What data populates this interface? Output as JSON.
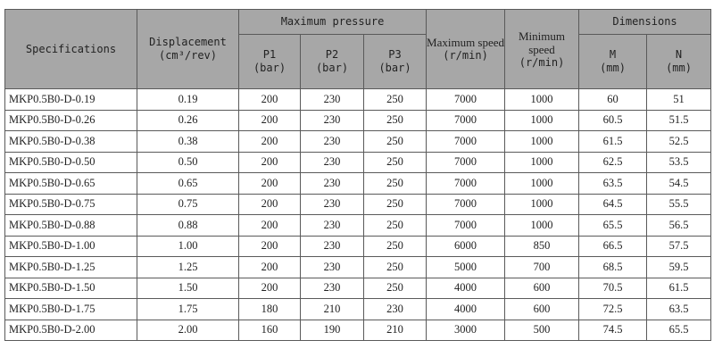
{
  "headers": {
    "specifications": "Specifications",
    "displacement": "Displacement",
    "displacement_unit": "(cm³/rev)",
    "max_pressure": "Maximum pressure",
    "p1": "P1",
    "p2": "P2",
    "p3": "P3",
    "bar_unit": "(bar)",
    "max_speed": "Maximum speed",
    "min_speed": "Minimum speed",
    "speed_unit": "(r/min)",
    "dimensions": "Dimensions",
    "m": "M",
    "n": "N",
    "mm_unit": "(mm)"
  },
  "rows": [
    [
      "MKP0.5B0-D-0.19",
      "0.19",
      "200",
      "230",
      "250",
      "7000",
      "1000",
      "60",
      "51"
    ],
    [
      "MKP0.5B0-D-0.26",
      "0.26",
      "200",
      "230",
      "250",
      "7000",
      "1000",
      "60.5",
      "51.5"
    ],
    [
      "MKP0.5B0-D-0.38",
      "0.38",
      "200",
      "230",
      "250",
      "7000",
      "1000",
      "61.5",
      "52.5"
    ],
    [
      "MKP0.5B0-D-0.50",
      "0.50",
      "200",
      "230",
      "250",
      "7000",
      "1000",
      "62.5",
      "53.5"
    ],
    [
      "MKP0.5B0-D-0.65",
      "0.65",
      "200",
      "230",
      "250",
      "7000",
      "1000",
      "63.5",
      "54.5"
    ],
    [
      "MKP0.5B0-D-0.75",
      "0.75",
      "200",
      "230",
      "250",
      "7000",
      "1000",
      "64.5",
      "55.5"
    ],
    [
      "MKP0.5B0-D-0.88",
      "0.88",
      "200",
      "230",
      "250",
      "7000",
      "1000",
      "65.5",
      "56.5"
    ],
    [
      "MKP0.5B0-D-1.00",
      "1.00",
      "200",
      "230",
      "250",
      "6000",
      "850",
      "66.5",
      "57.5"
    ],
    [
      "MKP0.5B0-D-1.25",
      "1.25",
      "200",
      "230",
      "250",
      "5000",
      "700",
      "68.5",
      "59.5"
    ],
    [
      "MKP0.5B0-D-1.50",
      "1.50",
      "200",
      "230",
      "250",
      "4000",
      "600",
      "70.5",
      "61.5"
    ],
    [
      "MKP0.5B0-D-1.75",
      "1.75",
      "180",
      "210",
      "230",
      "4000",
      "600",
      "72.5",
      "63.5"
    ],
    [
      "MKP0.5B0-D-2.00",
      "2.00",
      "160",
      "190",
      "210",
      "3000",
      "500",
      "74.5",
      "65.5"
    ]
  ],
  "colors": {
    "header_bg": "#a7a7a7",
    "border": "#5a5a5a"
  }
}
